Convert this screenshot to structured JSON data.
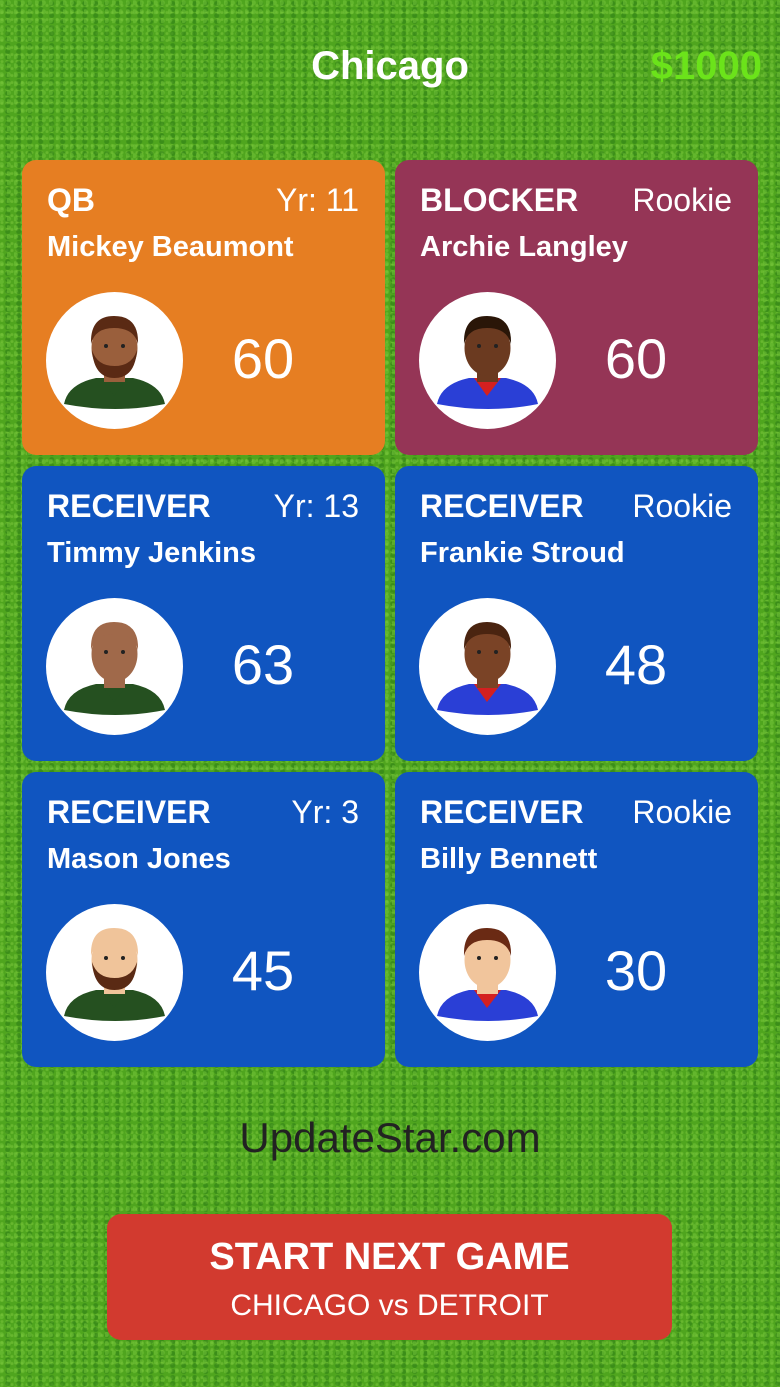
{
  "header": {
    "team": "Chicago",
    "money": "$1000",
    "money_color": "#6be31a"
  },
  "players": [
    {
      "position": "QB",
      "experience": "Yr: 11",
      "name": "Mickey Beaumont",
      "rating": "60",
      "card_color": "#e67e22",
      "avatar": {
        "skin": "#9a5f3c",
        "hair": "#5a2a14",
        "shirt": "#255020",
        "beard": true,
        "collar": "#255020"
      }
    },
    {
      "position": "BLOCKER",
      "experience": "Rookie",
      "name": "Archie Langley",
      "rating": "60",
      "card_color": "#953556",
      "avatar": {
        "skin": "#6b3a20",
        "hair": "#2a1608",
        "shirt": "#2a3fd6",
        "beard": false,
        "collar": "#d42020"
      }
    },
    {
      "position": "RECEIVER",
      "experience": "Yr: 13",
      "name": "Timmy Jenkins",
      "rating": "63",
      "card_color": "#1055c0",
      "avatar": {
        "skin": "#a0694a",
        "hair": "#a0694a",
        "shirt": "#255020",
        "beard": false,
        "collar": "#255020"
      }
    },
    {
      "position": "RECEIVER",
      "experience": "Rookie",
      "name": "Frankie Stroud",
      "rating": "48",
      "card_color": "#1055c0",
      "avatar": {
        "skin": "#7a4326",
        "hair": "#4a2410",
        "shirt": "#2a3fd6",
        "beard": false,
        "collar": "#d42020"
      }
    },
    {
      "position": "RECEIVER",
      "experience": "Yr: 3",
      "name": "Mason Jones",
      "rating": "45",
      "card_color": "#1055c0",
      "avatar": {
        "skin": "#f0c49a",
        "hair": "#f0c49a",
        "shirt": "#255020",
        "beard": true,
        "collar": "#255020"
      }
    },
    {
      "position": "RECEIVER",
      "experience": "Rookie",
      "name": "Billy Bennett",
      "rating": "30",
      "card_color": "#1055c0",
      "avatar": {
        "skin": "#f1c59c",
        "hair": "#6a2a14",
        "shirt": "#2a3fd6",
        "beard": false,
        "collar": "#d42020"
      }
    }
  ],
  "watermark": "UpdateStar.com",
  "start_button": {
    "label": "START NEXT GAME",
    "matchup": "CHICAGO vs DETROIT",
    "color": "#d23a2f"
  }
}
